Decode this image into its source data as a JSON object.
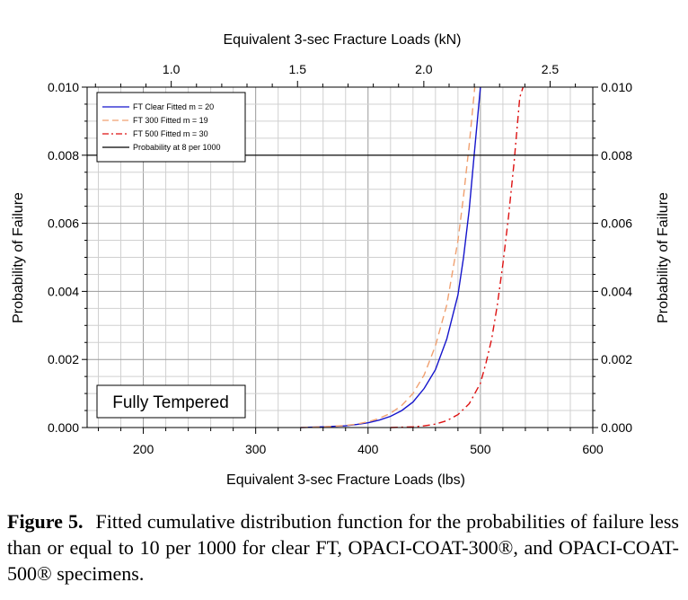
{
  "chart_data": {
    "type": "line",
    "title": "",
    "xlabel": "Equivalent 3-sec Fracture Loads (lbs)",
    "x2label": "Equivalent 3-sec Fracture Loads (kN)",
    "ylabel": "Probability of Failure",
    "y2label": "Probability of Failure",
    "xlim": [
      150,
      600
    ],
    "ylim": [
      0,
      0.01
    ],
    "x_ticks": [
      200,
      300,
      400,
      500,
      600
    ],
    "x2lim_kN": [
      0.667,
      2.669
    ],
    "x2_ticks": [
      "1.0",
      "1.5",
      "2.0",
      "2.5"
    ],
    "y_ticks": [
      "0.000",
      "0.002",
      "0.004",
      "0.006",
      "0.008",
      "0.010"
    ],
    "grid": true,
    "legend_position": "top-left",
    "annotation": "Fully Tempered",
    "series": [
      {
        "name": "FT Clear Fitted m = 20",
        "color": "#1515cc",
        "style": "solid",
        "x": [
          340,
          360,
          380,
          390,
          400,
          410,
          420,
          430,
          440,
          450,
          460,
          470,
          480,
          485,
          490,
          495,
          500
        ],
        "y": [
          0.0,
          2e-05,
          5e-05,
          9e-05,
          0.00014,
          0.00022,
          0.00033,
          0.0005,
          0.00075,
          0.00115,
          0.0017,
          0.0026,
          0.0039,
          0.005,
          0.0064,
          0.0082,
          0.0102
        ]
      },
      {
        "name": "FT 300 Fitted m = 19",
        "color": "#f0a070",
        "style": "dashed",
        "x": [
          340,
          360,
          380,
          390,
          400,
          410,
          420,
          430,
          440,
          450,
          460,
          470,
          480,
          485,
          490,
          495
        ],
        "y": [
          0.0,
          2e-05,
          6e-05,
          0.0001,
          0.00017,
          0.00027,
          0.00042,
          0.00065,
          0.001,
          0.00155,
          0.0024,
          0.0036,
          0.0055,
          0.0068,
          0.0083,
          0.0102
        ]
      },
      {
        "name": "FT 500 Fitted m = 30",
        "color": "#dd1111",
        "style": "dashdot",
        "x": [
          420,
          440,
          450,
          460,
          470,
          480,
          490,
          500,
          505,
          510,
          515,
          520,
          525,
          530,
          535,
          538
        ],
        "y": [
          0.0,
          2e-05,
          5e-05,
          0.0001,
          0.0002,
          0.00038,
          0.0007,
          0.0013,
          0.0019,
          0.0026,
          0.0036,
          0.0048,
          0.0062,
          0.0078,
          0.0097,
          0.0102
        ]
      },
      {
        "name": "Probability at 8 per 1000",
        "color": "#000000",
        "style": "solid",
        "x": [
          150,
          600
        ],
        "y": [
          0.008,
          0.008
        ]
      }
    ]
  },
  "caption": {
    "label": "Figure 5.",
    "text": "Fitted cumulative distribution function for the probabilities of failure less than or equal to 10 per 1000 for clear FT, OPACI-COAT-300®, and OPACI-COAT-500® specimens."
  }
}
